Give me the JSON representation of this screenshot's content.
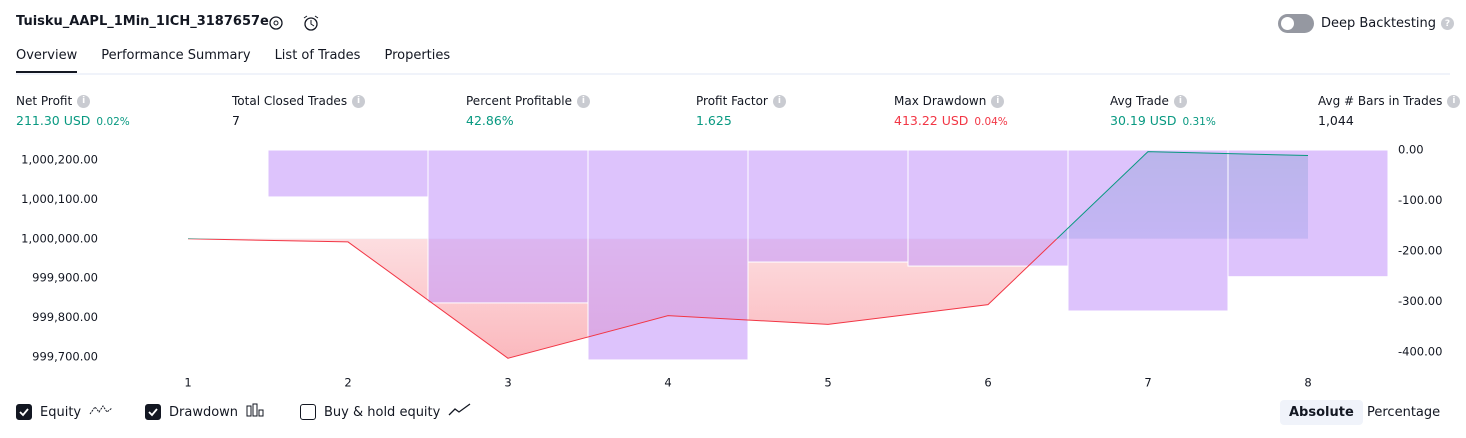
{
  "header": {
    "title": "Tuisku_AAPL_1Min_1ICH_3187657e",
    "deep_backtesting": "Deep Backtesting"
  },
  "tabs": [
    "Overview",
    "Performance Summary",
    "List of Trades",
    "Properties"
  ],
  "metrics": [
    {
      "label": "Net Profit",
      "value": "211.30 USD",
      "percent": "0.02%",
      "tone": "up"
    },
    {
      "label": "Total Closed Trades",
      "value": "7",
      "tone": "plain"
    },
    {
      "label": "Percent Profitable",
      "value": "42.86%",
      "tone": "up"
    },
    {
      "label": "Profit Factor",
      "value": "1.625",
      "tone": "up"
    },
    {
      "label": "Max Drawdown",
      "value": "413.22 USD",
      "percent": "0.04%",
      "tone": "down"
    },
    {
      "label": "Avg Trade",
      "value": "30.19 USD",
      "percent": "0.31%",
      "tone": "up"
    },
    {
      "label": "Avg # Bars in Trades",
      "value": "1,044",
      "tone": "plain"
    }
  ],
  "chart_data": {
    "type": "combo",
    "categories": [
      "1",
      "2",
      "3",
      "4",
      "5",
      "6",
      "7",
      "8"
    ],
    "series": [
      {
        "name": "Drawdown",
        "type": "bar",
        "axis": "y2",
        "color": "#c79bfa",
        "checked": true,
        "values": [
          0,
          -93,
          -303,
          -416,
          -222,
          -230,
          -319,
          -251
        ]
      },
      {
        "name": "Equity",
        "type": "line",
        "color": "#f23645",
        "color_above": "#089981",
        "checked": true,
        "values": [
          1000000,
          999992,
          999697,
          999805,
          999783,
          999833,
          1000221,
          1000211
        ]
      }
    ],
    "ylim": [
      999680,
      1000225
    ],
    "yticks": [
      {
        "value": 1000200,
        "label": "1,000,200.00"
      },
      {
        "value": 1000100,
        "label": "1,000,100.00"
      },
      {
        "value": 1000000,
        "label": "1,000,000.00"
      },
      {
        "value": 999900,
        "label": "999,900.00"
      },
      {
        "value": 999800,
        "label": "999,800.00"
      },
      {
        "value": 999700,
        "label": "999,700.00"
      }
    ],
    "y2lim": [
      -426,
      0
    ],
    "y2ticks": [
      {
        "value": 0,
        "label": "0.00"
      },
      {
        "value": -100,
        "label": "-100.00"
      },
      {
        "value": -200,
        "label": "-200.00"
      },
      {
        "value": -300,
        "label": "-300.00"
      },
      {
        "value": -400,
        "label": "-400.00"
      }
    ]
  },
  "controls": {
    "buy_hold": {
      "label": "Buy & hold equity",
      "checked": false
    },
    "modes": [
      "Absolute",
      "Percentage"
    ]
  }
}
